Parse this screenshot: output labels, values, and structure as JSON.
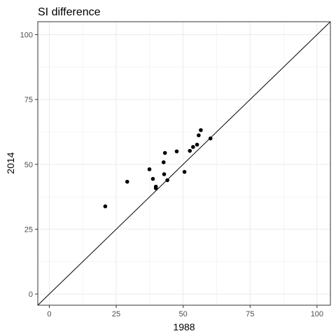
{
  "chart_data": {
    "type": "scatter",
    "title": "SI difference",
    "xlabel": "1988",
    "ylabel": "2014",
    "xlim": [
      -4.3,
      105
    ],
    "ylim": [
      -4.3,
      105
    ],
    "x_ticks": [
      0,
      25,
      50,
      75,
      100
    ],
    "y_ticks": [
      0,
      25,
      50,
      75,
      100
    ],
    "grid": true,
    "reference_line": "y = x",
    "point_color": "#000000",
    "points": [
      {
        "x": 20.9,
        "y": 33.8
      },
      {
        "x": 29.1,
        "y": 43.3
      },
      {
        "x": 37.4,
        "y": 48.1
      },
      {
        "x": 38.7,
        "y": 44.4
      },
      {
        "x": 39.8,
        "y": 41.4
      },
      {
        "x": 39.8,
        "y": 40.8
      },
      {
        "x": 42.7,
        "y": 50.8
      },
      {
        "x": 42.9,
        "y": 46.2
      },
      {
        "x": 43.2,
        "y": 54.4
      },
      {
        "x": 44.1,
        "y": 43.9
      },
      {
        "x": 47.6,
        "y": 55.0
      },
      {
        "x": 50.5,
        "y": 47.1
      },
      {
        "x": 52.5,
        "y": 55.2
      },
      {
        "x": 53.7,
        "y": 56.7
      },
      {
        "x": 55.2,
        "y": 57.6
      },
      {
        "x": 55.8,
        "y": 61.2
      },
      {
        "x": 56.6,
        "y": 63.2
      },
      {
        "x": 60.2,
        "y": 60.0
      }
    ]
  }
}
